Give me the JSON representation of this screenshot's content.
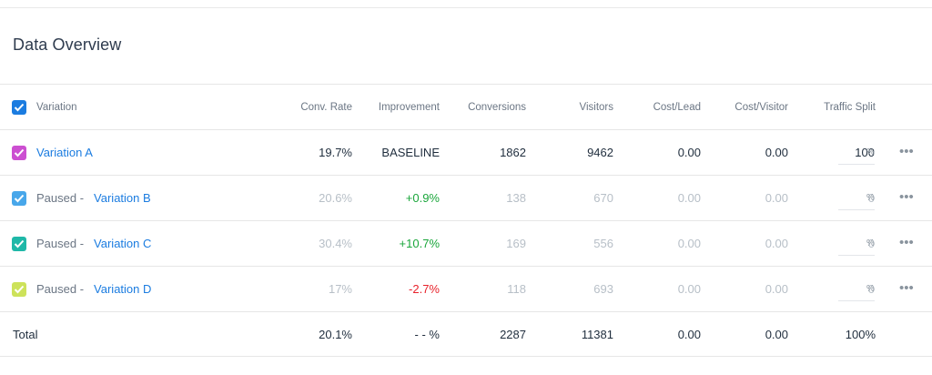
{
  "title": "Data Overview",
  "header": {
    "variation": "Variation",
    "conv_rate": "Conv. Rate",
    "improvement": "Improvement",
    "conversions": "Conversions",
    "visitors": "Visitors",
    "cost_lead": "Cost/Lead",
    "cost_visitor": "Cost/Visitor",
    "traffic_split": "Traffic Split"
  },
  "colors": {
    "header_checkbox": "#1b7ce0",
    "variation_a": "#cc4fd1",
    "variation_b": "#48a7ea",
    "variation_c": "#1fb8a8",
    "variation_d": "#cde25a",
    "link": "#1b7ce0",
    "positive": "#1aa63b",
    "negative": "#e8222b"
  },
  "rows": [
    {
      "paused_label": "",
      "name": "Variation A",
      "conv_rate": "19.7%",
      "improvement": "BASELINE",
      "conversions": "1862",
      "visitors": "9462",
      "cost_lead": "0.00",
      "cost_visitor": "0.00",
      "traffic_split": "100",
      "pct": "%",
      "more_icon": "ellipsis-icon"
    },
    {
      "paused_label": "Paused -",
      "name": "Variation B",
      "conv_rate": "20.6%",
      "improvement": "+0.9%",
      "conversions": "138",
      "visitors": "670",
      "cost_lead": "0.00",
      "cost_visitor": "0.00",
      "traffic_split": "0",
      "pct": "%",
      "more_icon": "ellipsis-icon"
    },
    {
      "paused_label": "Paused -",
      "name": "Variation C",
      "conv_rate": "30.4%",
      "improvement": "+10.7%",
      "conversions": "169",
      "visitors": "556",
      "cost_lead": "0.00",
      "cost_visitor": "0.00",
      "traffic_split": "0",
      "pct": "%",
      "more_icon": "ellipsis-icon"
    },
    {
      "paused_label": "Paused -",
      "name": "Variation D",
      "conv_rate": "17%",
      "improvement": "-2.7%",
      "conversions": "118",
      "visitors": "693",
      "cost_lead": "0.00",
      "cost_visitor": "0.00",
      "traffic_split": "0",
      "pct": "%",
      "more_icon": "ellipsis-icon"
    }
  ],
  "total": {
    "label": "Total",
    "conv_rate": "20.1%",
    "improvement": "- - %",
    "conversions": "2287",
    "visitors": "11381",
    "cost_lead": "0.00",
    "cost_visitor": "0.00",
    "traffic_split": "100%"
  }
}
